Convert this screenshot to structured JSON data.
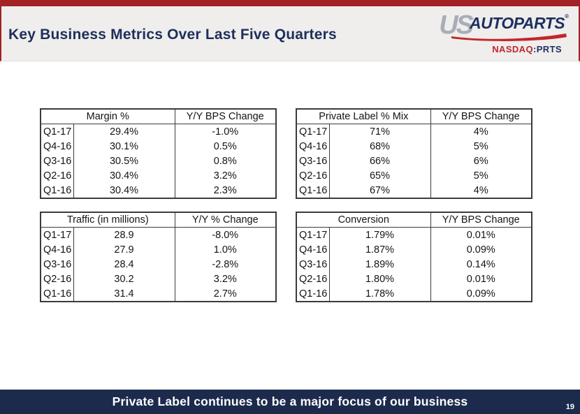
{
  "slide": {
    "title": "Key Business Metrics Over Last Five Quarters",
    "footer_text": "Private Label continues to be a major focus of our business",
    "page_number": "19"
  },
  "logo": {
    "us": "US",
    "autoparts": "AUTOPARTS",
    "registered": "®",
    "ticker_exchange": "NASDAQ",
    "ticker_symbol": ":PRTS"
  },
  "colors": {
    "top_bar_red": "#A42125",
    "header_band_gray": "#EFEEEC",
    "title_navy": "#1E2F5C",
    "footer_navy": "#1C2A4C",
    "logo_gray": "#A9ADB8",
    "logo_navy": "#1F3060",
    "logo_red": "#C2262C",
    "table_border": "#3B3B3B"
  },
  "tables": [
    {
      "metric_header": "Margin %",
      "change_header": "Y/Y BPS Change",
      "rows": [
        {
          "quarter": "Q1-17",
          "value": "29.4%",
          "change": "-1.0%"
        },
        {
          "quarter": "Q4-16",
          "value": "30.1%",
          "change": "0.5%"
        },
        {
          "quarter": "Q3-16",
          "value": "30.5%",
          "change": "0.8%"
        },
        {
          "quarter": "Q2-16",
          "value": "30.4%",
          "change": "3.2%"
        },
        {
          "quarter": "Q1-16",
          "value": "30.4%",
          "change": "2.3%"
        }
      ]
    },
    {
      "metric_header": "Private Label % Mix",
      "change_header": "Y/Y BPS Change",
      "rows": [
        {
          "quarter": "Q1-17",
          "value": "71%",
          "change": "4%"
        },
        {
          "quarter": "Q4-16",
          "value": "68%",
          "change": "5%"
        },
        {
          "quarter": "Q3-16",
          "value": "66%",
          "change": "6%"
        },
        {
          "quarter": "Q2-16",
          "value": "65%",
          "change": "5%"
        },
        {
          "quarter": "Q1-16",
          "value": "67%",
          "change": "4%"
        }
      ]
    },
    {
      "metric_header": "Traffic (in millions)",
      "change_header": "Y/Y % Change",
      "rows": [
        {
          "quarter": "Q1-17",
          "value": "28.9",
          "change": "-8.0%"
        },
        {
          "quarter": "Q4-16",
          "value": "27.9",
          "change": "1.0%"
        },
        {
          "quarter": "Q3-16",
          "value": "28.4",
          "change": "-2.8%"
        },
        {
          "quarter": "Q2-16",
          "value": "30.2",
          "change": "3.2%"
        },
        {
          "quarter": "Q1-16",
          "value": "31.4",
          "change": "2.7%"
        }
      ]
    },
    {
      "metric_header": "Conversion",
      "change_header": "Y/Y BPS Change",
      "rows": [
        {
          "quarter": "Q1-17",
          "value": "1.79%",
          "change": "0.01%"
        },
        {
          "quarter": "Q4-16",
          "value": "1.87%",
          "change": "0.09%"
        },
        {
          "quarter": "Q3-16",
          "value": "1.89%",
          "change": "0.14%"
        },
        {
          "quarter": "Q2-16",
          "value": "1.80%",
          "change": "0.01%"
        },
        {
          "quarter": "Q1-16",
          "value": "1.78%",
          "change": "0.09%"
        }
      ]
    }
  ]
}
